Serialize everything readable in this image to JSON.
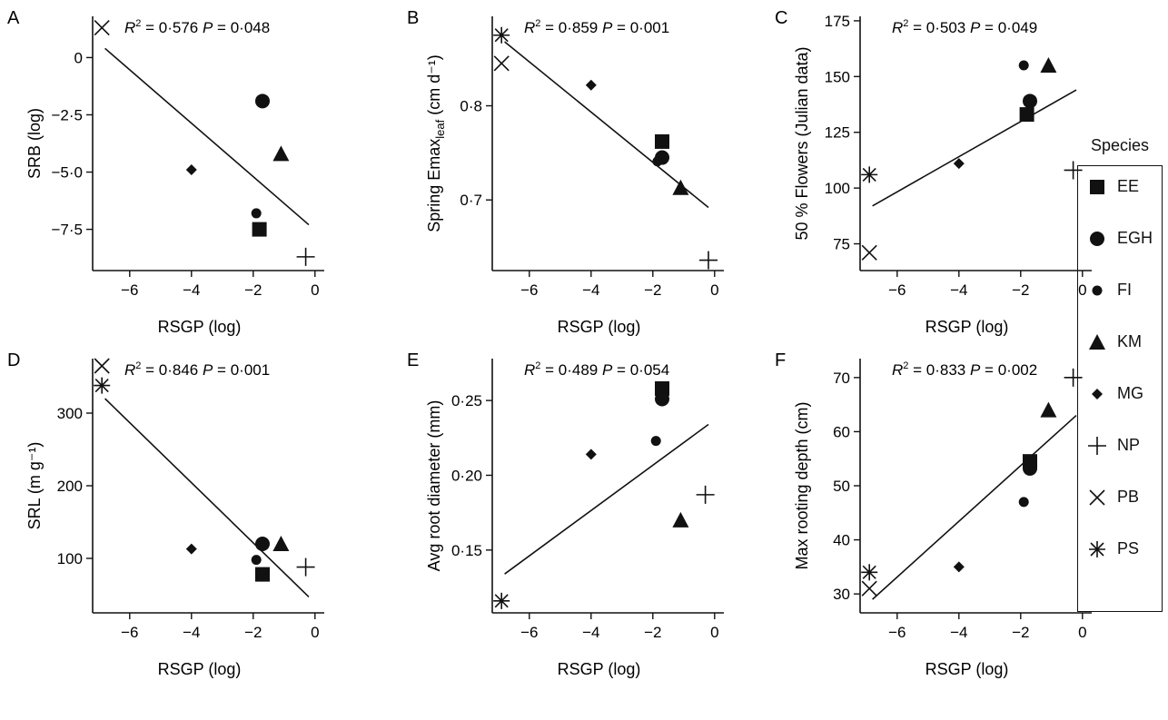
{
  "chart_data": [
    {
      "panel": "A",
      "type": "scatter",
      "stat": "R² = 0·576 P = 0·048",
      "r2": "0·576",
      "p": "0·048",
      "xlabel": "RSGP (log)",
      "ylabel": "SRB (log)",
      "xlim": [
        -7.2,
        0.3
      ],
      "ylim": [
        -9.3,
        1.8
      ],
      "xticks": [
        {
          "v": -6,
          "t": "−6"
        },
        {
          "v": -4,
          "t": "−4"
        },
        {
          "v": -2,
          "t": "−2"
        },
        {
          "v": 0,
          "t": "0"
        }
      ],
      "yticks": [
        {
          "v": 0,
          "t": "0"
        },
        {
          "v": -2.5,
          "t": "−2·5"
        },
        {
          "v": -5,
          "t": "−5·0"
        },
        {
          "v": -7.5,
          "t": "−7·5"
        }
      ],
      "regression": [
        [
          -6.8,
          0.4
        ],
        [
          -0.2,
          -7.3
        ]
      ],
      "points": [
        {
          "species": "PB",
          "x": -6.9,
          "y": 1.3
        },
        {
          "species": "EGH",
          "x": -1.7,
          "y": -1.9
        },
        {
          "species": "KM",
          "x": -1.1,
          "y": -4.2
        },
        {
          "species": "MG",
          "x": -4.0,
          "y": -4.9
        },
        {
          "species": "FI",
          "x": -1.9,
          "y": -6.8
        },
        {
          "species": "EE",
          "x": -1.8,
          "y": -7.5
        },
        {
          "species": "NP",
          "x": -0.3,
          "y": -8.7
        }
      ]
    },
    {
      "panel": "B",
      "type": "scatter",
      "stat": "R² = 0·859 P = 0·001",
      "r2": "0·859",
      "p": "0·001",
      "xlabel": "RSGP (log)",
      "ylabel": "Spring Emax",
      "ylabel_sub": "leaf",
      "ylabel_unit": "(cm d⁻¹)",
      "xlim": [
        -7.2,
        0.3
      ],
      "ylim": [
        0.625,
        0.895
      ],
      "xticks": [
        {
          "v": -6,
          "t": "−6"
        },
        {
          "v": -4,
          "t": "−4"
        },
        {
          "v": -2,
          "t": "−2"
        },
        {
          "v": 0,
          "t": "0"
        }
      ],
      "yticks": [
        {
          "v": 0.8,
          "t": "0·8"
        },
        {
          "v": 0.7,
          "t": "0·7"
        }
      ],
      "regression": [
        [
          -6.8,
          0.868
        ],
        [
          -0.2,
          0.692
        ]
      ],
      "points": [
        {
          "species": "PS",
          "x": -6.9,
          "y": 0.875
        },
        {
          "species": "PB",
          "x": -6.9,
          "y": 0.845
        },
        {
          "species": "MG",
          "x": -4.0,
          "y": 0.822
        },
        {
          "species": "EE",
          "x": -1.7,
          "y": 0.762
        },
        {
          "species": "EGH",
          "x": -1.7,
          "y": 0.745
        },
        {
          "species": "FI",
          "x": -1.85,
          "y": 0.741
        },
        {
          "species": "KM",
          "x": -1.1,
          "y": 0.713
        },
        {
          "species": "NP",
          "x": -0.2,
          "y": 0.636
        }
      ]
    },
    {
      "panel": "C",
      "type": "scatter",
      "stat": "R² = 0·503 P = 0·049",
      "r2": "0·503",
      "p": "0·049",
      "xlabel": "RSGP (log)",
      "ylabel": "50 % Flowers (Julian data)",
      "xlim": [
        -7.2,
        0.3
      ],
      "ylim": [
        63,
        177
      ],
      "xticks": [
        {
          "v": -6,
          "t": "−6"
        },
        {
          "v": -4,
          "t": "−4"
        },
        {
          "v": -2,
          "t": "−2"
        },
        {
          "v": 0,
          "t": "0"
        }
      ],
      "yticks": [
        {
          "v": 175,
          "t": "175"
        },
        {
          "v": 150,
          "t": "150"
        },
        {
          "v": 125,
          "t": "125"
        },
        {
          "v": 100,
          "t": "100"
        },
        {
          "v": 75,
          "t": "75"
        }
      ],
      "regression": [
        [
          -6.8,
          92
        ],
        [
          -0.2,
          144
        ]
      ],
      "points": [
        {
          "species": "FI",
          "x": -1.9,
          "y": 155
        },
        {
          "species": "KM",
          "x": -1.1,
          "y": 155
        },
        {
          "species": "EGH",
          "x": -1.7,
          "y": 139
        },
        {
          "species": "EE",
          "x": -1.8,
          "y": 133
        },
        {
          "species": "MG",
          "x": -4.0,
          "y": 111
        },
        {
          "species": "PS",
          "x": -6.9,
          "y": 106
        },
        {
          "species": "NP",
          "x": -0.3,
          "y": 108
        },
        {
          "species": "PB",
          "x": -6.9,
          "y": 71
        }
      ]
    },
    {
      "panel": "D",
      "type": "scatter",
      "stat": "R² = 0·846 P = 0·001",
      "r2": "0·846",
      "p": "0·001",
      "xlabel": "RSGP (log)",
      "ylabel": "SRL",
      "ylabel_unit": "(m g⁻¹)",
      "xlim": [
        -7.2,
        0.3
      ],
      "ylim": [
        25,
        375
      ],
      "xticks": [
        {
          "v": -6,
          "t": "−6"
        },
        {
          "v": -4,
          "t": "−4"
        },
        {
          "v": -2,
          "t": "−2"
        },
        {
          "v": 0,
          "t": "0"
        }
      ],
      "yticks": [
        {
          "v": 300,
          "t": "300"
        },
        {
          "v": 200,
          "t": "200"
        },
        {
          "v": 100,
          "t": "100"
        }
      ],
      "regression": [
        [
          -6.8,
          320
        ],
        [
          -0.2,
          47
        ]
      ],
      "points": [
        {
          "species": "PB",
          "x": -6.9,
          "y": 365
        },
        {
          "species": "PS",
          "x": -6.9,
          "y": 338
        },
        {
          "species": "MG",
          "x": -4.0,
          "y": 113
        },
        {
          "species": "EGH",
          "x": -1.7,
          "y": 120
        },
        {
          "species": "KM",
          "x": -1.1,
          "y": 120
        },
        {
          "species": "FI",
          "x": -1.9,
          "y": 98
        },
        {
          "species": "EE",
          "x": -1.7,
          "y": 78
        },
        {
          "species": "NP",
          "x": -0.3,
          "y": 88
        }
      ]
    },
    {
      "panel": "E",
      "type": "scatter",
      "stat": "R² = 0·489 P = 0·054",
      "r2": "0·489",
      "p": "0·054",
      "xlabel": "RSGP (log)",
      "ylabel": "Avg root diameter (mm)",
      "xlim": [
        -7.2,
        0.3
      ],
      "ylim": [
        0.108,
        0.278
      ],
      "xticks": [
        {
          "v": -6,
          "t": "−6"
        },
        {
          "v": -4,
          "t": "−4"
        },
        {
          "v": -2,
          "t": "−2"
        },
        {
          "v": 0,
          "t": "0"
        }
      ],
      "yticks": [
        {
          "v": 0.25,
          "t": "0·25"
        },
        {
          "v": 0.2,
          "t": "0·20"
        },
        {
          "v": 0.15,
          "t": "0·15"
        }
      ],
      "regression": [
        [
          -6.8,
          0.134
        ],
        [
          -0.2,
          0.234
        ]
      ],
      "points": [
        {
          "species": "EE",
          "x": -1.7,
          "y": 0.258
        },
        {
          "species": "EGH",
          "x": -1.7,
          "y": 0.251
        },
        {
          "species": "FI",
          "x": -1.9,
          "y": 0.223
        },
        {
          "species": "MG",
          "x": -4.0,
          "y": 0.214
        },
        {
          "species": "NP",
          "x": -0.3,
          "y": 0.187
        },
        {
          "species": "KM",
          "x": -1.1,
          "y": 0.17
        },
        {
          "species": "PS",
          "x": -6.9,
          "y": 0.116
        }
      ]
    },
    {
      "panel": "F",
      "type": "scatter",
      "stat": "R² = 0·833 P = 0·002",
      "r2": "0·833",
      "p": "0·002",
      "xlabel": "RSGP (log)",
      "ylabel": "Max rooting depth (cm)",
      "xlim": [
        -7.2,
        0.3
      ],
      "ylim": [
        26.5,
        73.5
      ],
      "xticks": [
        {
          "v": -6,
          "t": "−6"
        },
        {
          "v": -4,
          "t": "−4"
        },
        {
          "v": -2,
          "t": "−2"
        },
        {
          "v": 0,
          "t": "0"
        }
      ],
      "yticks": [
        {
          "v": 70,
          "t": "70"
        },
        {
          "v": 60,
          "t": "60"
        },
        {
          "v": 50,
          "t": "50"
        },
        {
          "v": 40,
          "t": "40"
        },
        {
          "v": 30,
          "t": "30"
        }
      ],
      "regression": [
        [
          -6.8,
          29
        ],
        [
          -0.2,
          63
        ]
      ],
      "points": [
        {
          "species": "NP",
          "x": -0.3,
          "y": 70
        },
        {
          "species": "KM",
          "x": -1.1,
          "y": 64
        },
        {
          "species": "EE",
          "x": -1.7,
          "y": 54.5
        },
        {
          "species": "EGH",
          "x": -1.7,
          "y": 53.2
        },
        {
          "species": "FI",
          "x": -1.9,
          "y": 47
        },
        {
          "species": "MG",
          "x": -4.0,
          "y": 35
        },
        {
          "species": "PS",
          "x": -6.9,
          "y": 34
        },
        {
          "species": "PB",
          "x": -6.9,
          "y": 31
        }
      ]
    }
  ],
  "legend": {
    "title": "Species",
    "items": [
      {
        "code": "EE",
        "marker": "square"
      },
      {
        "code": "EGH",
        "marker": "circle"
      },
      {
        "code": "FI",
        "marker": "small-circle"
      },
      {
        "code": "KM",
        "marker": "triangle"
      },
      {
        "code": "MG",
        "marker": "diamond"
      },
      {
        "code": "NP",
        "marker": "plus"
      },
      {
        "code": "PB",
        "marker": "cross"
      },
      {
        "code": "PS",
        "marker": "asterisk"
      }
    ]
  }
}
